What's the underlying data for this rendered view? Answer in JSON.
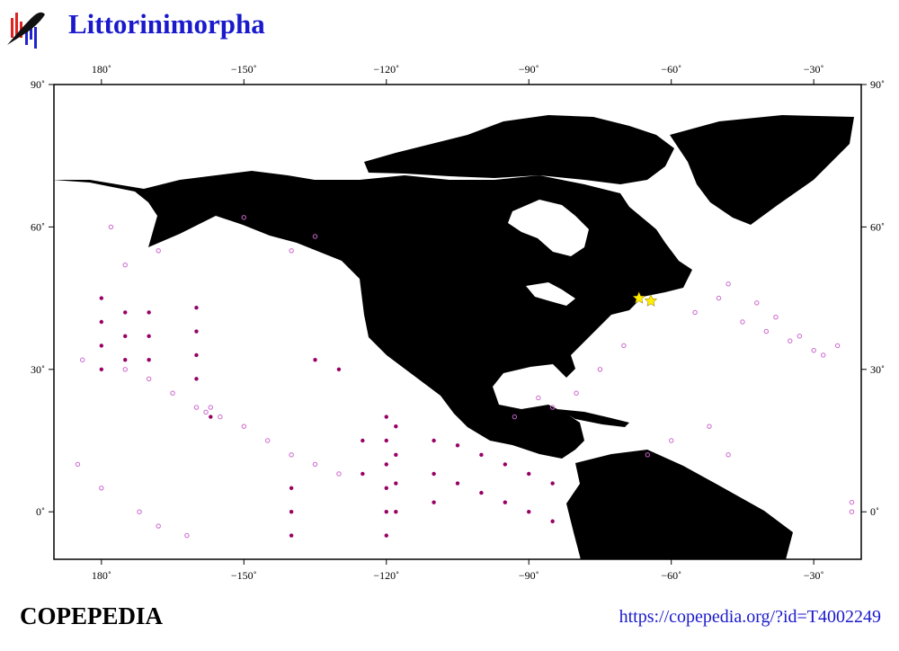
{
  "chart_data": {
    "type": "map",
    "title": "Littorinimorpha",
    "footer_left": "COPEPEDIA",
    "footer_right": "https://copepedia.org/?id=T4002249",
    "xlim": [
      -190,
      -20
    ],
    "ylim": [
      -10,
      90
    ],
    "xticks": [
      {
        "value": -180,
        "label": "180˚"
      },
      {
        "value": -150,
        "label": "−150˚"
      },
      {
        "value": -120,
        "label": "−120˚"
      },
      {
        "value": -90,
        "label": "−90˚"
      },
      {
        "value": -60,
        "label": "−60˚"
      },
      {
        "value": -30,
        "label": "−30˚"
      }
    ],
    "yticks": [
      {
        "value": 0,
        "label": "0˚"
      },
      {
        "value": 30,
        "label": "30˚"
      },
      {
        "value": 60,
        "label": "60˚"
      },
      {
        "value": 90,
        "label": "90˚"
      }
    ],
    "series": [
      {
        "marker": "open",
        "color": "#cc66cc",
        "lon": [
          -184,
          -175,
          -170,
          -165,
          -160,
          -158,
          -157,
          -155,
          -150,
          -145,
          -140,
          -135,
          -130,
          -185,
          -180,
          -172,
          -168,
          -162,
          -45,
          -40,
          -35,
          -30,
          -28,
          -50,
          -55,
          -48,
          -42,
          -38,
          -33,
          -25,
          -70,
          -75,
          -80,
          -85,
          -88,
          -93,
          -60,
          -65,
          -178,
          -140,
          -135,
          -150,
          -168,
          -175,
          -22,
          -22,
          -48,
          -52
        ],
        "lat": [
          32,
          30,
          28,
          25,
          22,
          21,
          22,
          20,
          18,
          15,
          12,
          10,
          8,
          10,
          5,
          0,
          -3,
          -5,
          40,
          38,
          36,
          34,
          33,
          45,
          42,
          48,
          44,
          41,
          37,
          35,
          35,
          30,
          25,
          22,
          24,
          20,
          15,
          12,
          60,
          55,
          58,
          62,
          55,
          52,
          2,
          0,
          12,
          18
        ]
      },
      {
        "marker": "filled",
        "color": "#990066",
        "lon": [
          -180,
          -180,
          -180,
          -180,
          -175,
          -175,
          -175,
          -170,
          -170,
          -170,
          -160,
          -160,
          -160,
          -160,
          -157,
          -120,
          -120,
          -120,
          -120,
          -120,
          -120,
          -118,
          -118,
          -118,
          -118,
          -110,
          -110,
          -110,
          -105,
          -105,
          -100,
          -100,
          -95,
          -95,
          -90,
          -90,
          -85,
          -85,
          -140,
          -140,
          -140,
          -125,
          -125,
          -130,
          -135
        ],
        "lat": [
          45,
          40,
          35,
          30,
          42,
          37,
          32,
          42,
          37,
          32,
          43,
          38,
          33,
          28,
          20,
          20,
          15,
          10,
          5,
          0,
          -5,
          18,
          12,
          6,
          0,
          15,
          8,
          2,
          14,
          6,
          12,
          4,
          10,
          2,
          8,
          0,
          6,
          -2,
          5,
          0,
          -5,
          15,
          8,
          30,
          32
        ]
      },
      {
        "marker": "star",
        "color": "#ffee00",
        "lon": [
          -66.8,
          -64.3
        ],
        "lat": [
          45,
          44.4
        ]
      }
    ]
  }
}
